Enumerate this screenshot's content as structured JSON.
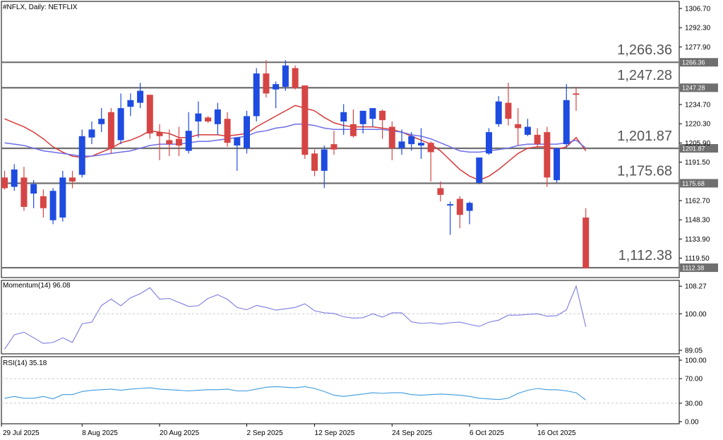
{
  "title": "#NFLX, Daily:  NETFLIX",
  "colors": {
    "up": "#1E4BE0",
    "down": "#D64545",
    "ma_fast": "#D63A3A",
    "ma_slow": "#6E6EE8",
    "indicator": "#7B7BE0",
    "rsi": "#3C9BDC",
    "level": "#6F6F6F",
    "grid": "#C8C8C8"
  },
  "chart_data": [
    {
      "type": "candlestick",
      "title": "#NFLX, Daily:  NETFLIX",
      "ylim": [
        1105,
        1312
      ],
      "y_ticks": [
        "1306.70",
        "1292.30",
        "1277.90",
        "1266.36",
        "1247.28",
        "1234.70",
        "1220.30",
        "1205.90",
        "1201.87",
        "1191.50",
        "1175.68",
        "1162.70",
        "1148.30",
        "1133.90",
        "1119.50",
        "1112.38"
      ],
      "x_tick_labels": [
        "29 Jul 2025",
        "8 Aug 2025",
        "20 Aug 2025",
        "2 Sep 2025",
        "12 Sep 2025",
        "24 Sep 2025",
        "6 Oct 2025",
        "16 Oct 2025"
      ],
      "x_tick_index": [
        0,
        8,
        16,
        25,
        32,
        40,
        48,
        55
      ],
      "levels": [
        1266.36,
        1247.28,
        1201.87,
        1175.68,
        1112.38
      ],
      "level_labels": [
        "1,266.36",
        "1,247.28",
        "1,201.87",
        "1,175.68",
        "1,112.38"
      ],
      "candles": [
        {
          "o": 1180,
          "h": 1185,
          "l": 1171,
          "c": 1172
        },
        {
          "o": 1173,
          "h": 1190,
          "l": 1170,
          "c": 1186
        },
        {
          "o": 1180,
          "h": 1188,
          "l": 1155,
          "c": 1158
        },
        {
          "o": 1168,
          "h": 1178,
          "l": 1157,
          "c": 1175
        },
        {
          "o": 1166,
          "h": 1171,
          "l": 1150,
          "c": 1157
        },
        {
          "o": 1148,
          "h": 1172,
          "l": 1145,
          "c": 1170
        },
        {
          "o": 1150,
          "h": 1185,
          "l": 1147,
          "c": 1180
        },
        {
          "o": 1180,
          "h": 1185,
          "l": 1172,
          "c": 1177
        },
        {
          "o": 1182,
          "h": 1216,
          "l": 1180,
          "c": 1211
        },
        {
          "o": 1210,
          "h": 1222,
          "l": 1205,
          "c": 1216
        },
        {
          "o": 1220,
          "h": 1232,
          "l": 1214,
          "c": 1224
        },
        {
          "o": 1229,
          "h": 1232,
          "l": 1198,
          "c": 1202
        },
        {
          "o": 1208,
          "h": 1243,
          "l": 1205,
          "c": 1232
        },
        {
          "o": 1233,
          "h": 1243,
          "l": 1226,
          "c": 1238
        },
        {
          "o": 1236,
          "h": 1251,
          "l": 1232,
          "c": 1245
        },
        {
          "o": 1242,
          "h": 1242,
          "l": 1209,
          "c": 1213
        },
        {
          "o": 1214,
          "h": 1220,
          "l": 1193,
          "c": 1211
        },
        {
          "o": 1208,
          "h": 1216,
          "l": 1196,
          "c": 1205
        },
        {
          "o": 1209,
          "h": 1218,
          "l": 1196,
          "c": 1204
        },
        {
          "o": 1200,
          "h": 1229,
          "l": 1198,
          "c": 1215
        },
        {
          "o": 1222,
          "h": 1237,
          "l": 1210,
          "c": 1228
        },
        {
          "o": 1225,
          "h": 1226,
          "l": 1221,
          "c": 1222
        },
        {
          "o": 1220,
          "h": 1236,
          "l": 1212,
          "c": 1231
        },
        {
          "o": 1224,
          "h": 1229,
          "l": 1203,
          "c": 1206
        },
        {
          "o": 1204,
          "h": 1208,
          "l": 1185,
          "c": 1210
        },
        {
          "o": 1202,
          "h": 1230,
          "l": 1198,
          "c": 1226
        },
        {
          "o": 1226,
          "h": 1262,
          "l": 1222,
          "c": 1258
        },
        {
          "o": 1258,
          "h": 1268,
          "l": 1240,
          "c": 1243
        },
        {
          "o": 1246,
          "h": 1252,
          "l": 1232,
          "c": 1250
        },
        {
          "o": 1248,
          "h": 1268,
          "l": 1245,
          "c": 1264
        },
        {
          "o": 1262,
          "h": 1264,
          "l": 1246,
          "c": 1247
        },
        {
          "o": 1249,
          "h": 1249,
          "l": 1194,
          "c": 1197
        },
        {
          "o": 1198,
          "h": 1201,
          "l": 1181,
          "c": 1185
        },
        {
          "o": 1185,
          "h": 1204,
          "l": 1172,
          "c": 1201
        },
        {
          "o": 1205,
          "h": 1215,
          "l": 1197,
          "c": 1201
        },
        {
          "o": 1222,
          "h": 1235,
          "l": 1212,
          "c": 1229
        },
        {
          "o": 1220,
          "h": 1231,
          "l": 1210,
          "c": 1211
        },
        {
          "o": 1220,
          "h": 1230,
          "l": 1213,
          "c": 1230
        },
        {
          "o": 1224,
          "h": 1232,
          "l": 1218,
          "c": 1232
        },
        {
          "o": 1230,
          "h": 1231,
          "l": 1209,
          "c": 1223
        },
        {
          "o": 1218,
          "h": 1222,
          "l": 1193,
          "c": 1202
        },
        {
          "o": 1202,
          "h": 1216,
          "l": 1197,
          "c": 1207
        },
        {
          "o": 1205,
          "h": 1214,
          "l": 1200,
          "c": 1211
        },
        {
          "o": 1204,
          "h": 1217,
          "l": 1194,
          "c": 1206
        },
        {
          "o": 1206,
          "h": 1207,
          "l": 1177,
          "c": 1199
        },
        {
          "o": 1172,
          "h": 1177,
          "l": 1162,
          "c": 1167
        },
        {
          "o": 1159,
          "h": 1162,
          "l": 1137,
          "c": 1160
        },
        {
          "o": 1164,
          "h": 1166,
          "l": 1142,
          "c": 1152
        },
        {
          "o": 1155,
          "h": 1162,
          "l": 1145,
          "c": 1161
        },
        {
          "o": 1176,
          "h": 1195,
          "l": 1175,
          "c": 1195
        },
        {
          "o": 1198,
          "h": 1217,
          "l": 1197,
          "c": 1214
        },
        {
          "o": 1220,
          "h": 1241,
          "l": 1218,
          "c": 1237
        },
        {
          "o": 1236,
          "h": 1251,
          "l": 1219,
          "c": 1224
        },
        {
          "o": 1220,
          "h": 1232,
          "l": 1204,
          "c": 1217
        },
        {
          "o": 1212,
          "h": 1224,
          "l": 1211,
          "c": 1218
        },
        {
          "o": 1212,
          "h": 1217,
          "l": 1202,
          "c": 1205
        },
        {
          "o": 1214,
          "h": 1218,
          "l": 1173,
          "c": 1180
        },
        {
          "o": 1178,
          "h": 1202,
          "l": 1176,
          "c": 1202
        },
        {
          "o": 1205,
          "h": 1250,
          "l": 1203,
          "c": 1238
        },
        {
          "o": 1243,
          "h": 1248,
          "l": 1230,
          "c": 1242
        },
        {
          "o": 1150,
          "h": 1157,
          "l": 1112,
          "c": 1112
        }
      ],
      "series": [
        {
          "values": [
            1224,
            1221,
            1218,
            1214,
            1209,
            1203,
            1199,
            1196,
            1195,
            1196,
            1199,
            1202,
            1206,
            1208,
            1211,
            1215,
            1214,
            1213,
            1210,
            1210,
            1212,
            1212,
            1212,
            1211,
            1212,
            1213,
            1218,
            1222,
            1226,
            1230,
            1234,
            1232,
            1230,
            1225,
            1221,
            1219,
            1218,
            1218,
            1218,
            1217,
            1216,
            1214,
            1211,
            1208,
            1205,
            1200,
            1193,
            1186,
            1181,
            1178,
            1181,
            1186,
            1192,
            1198,
            1202,
            1203,
            1203,
            1201,
            1203,
            1210,
            1200
          ]
        },
        {
          "values": [
            1206,
            1205,
            1204,
            1202,
            1200,
            1199,
            1198,
            1197,
            1196,
            1196,
            1197,
            1198,
            1199,
            1200,
            1202,
            1204,
            1205,
            1205,
            1205,
            1206,
            1207,
            1207,
            1208,
            1209,
            1210,
            1211,
            1214,
            1215,
            1217,
            1218,
            1220,
            1220,
            1219,
            1217,
            1216,
            1216,
            1216,
            1216,
            1216,
            1216,
            1215,
            1214,
            1212,
            1211,
            1209,
            1206,
            1203,
            1200,
            1199,
            1199,
            1200,
            1201,
            1202,
            1204,
            1205,
            1205,
            1205,
            1205,
            1206,
            1208,
            1202
          ]
        }
      ]
    },
    {
      "type": "line",
      "title": "Momentum(14) 96.08",
      "ylim": [
        88,
        110
      ],
      "y_ticks": [
        "108.27",
        "100.00",
        "89.05"
      ],
      "series": [
        {
          "values": [
            89.4,
            93.7,
            94.5,
            92.8,
            91.1,
            91.4,
            92.8,
            91.4,
            97.0,
            97.5,
            102.5,
            104.4,
            102.4,
            104.8,
            106.0,
            107.8,
            104.4,
            104.6,
            103.4,
            102.2,
            102.4,
            104.6,
            105.7,
            104.3,
            101.9,
            101.2,
            102.5,
            101.9,
            101.1,
            101.5,
            101.9,
            103.0,
            100.9,
            100.3,
            100.1,
            99.1,
            98.7,
            98.8,
            100.0,
            99.0,
            100.3,
            100.3,
            97.6,
            97.1,
            97.3,
            96.9,
            97.3,
            97.5,
            96.8,
            96.2,
            97.5,
            98.1,
            99.6,
            99.6,
            99.8,
            100.0,
            99.3,
            99.4,
            101.2,
            108.3,
            96.1
          ]
        }
      ]
    },
    {
      "type": "line",
      "title": "RSI(14) 35.18",
      "ylim": [
        0,
        100
      ],
      "y_ticks": [
        "100.00",
        "70.00",
        "30.00",
        "0.00"
      ],
      "series": [
        {
          "values": [
            38,
            41,
            38,
            38,
            41,
            37,
            44,
            44,
            49,
            51,
            52,
            53,
            51,
            53,
            54,
            55,
            53,
            52,
            51,
            50,
            51,
            52,
            52,
            53,
            50,
            50,
            53,
            56,
            57,
            56,
            55,
            57,
            54,
            49,
            43,
            41,
            43,
            45,
            47,
            46,
            47,
            47,
            44,
            43,
            44,
            45,
            44,
            43,
            41,
            38,
            37,
            36,
            38,
            46,
            51,
            54,
            52,
            52,
            50,
            47,
            35.18
          ]
        }
      ]
    }
  ]
}
